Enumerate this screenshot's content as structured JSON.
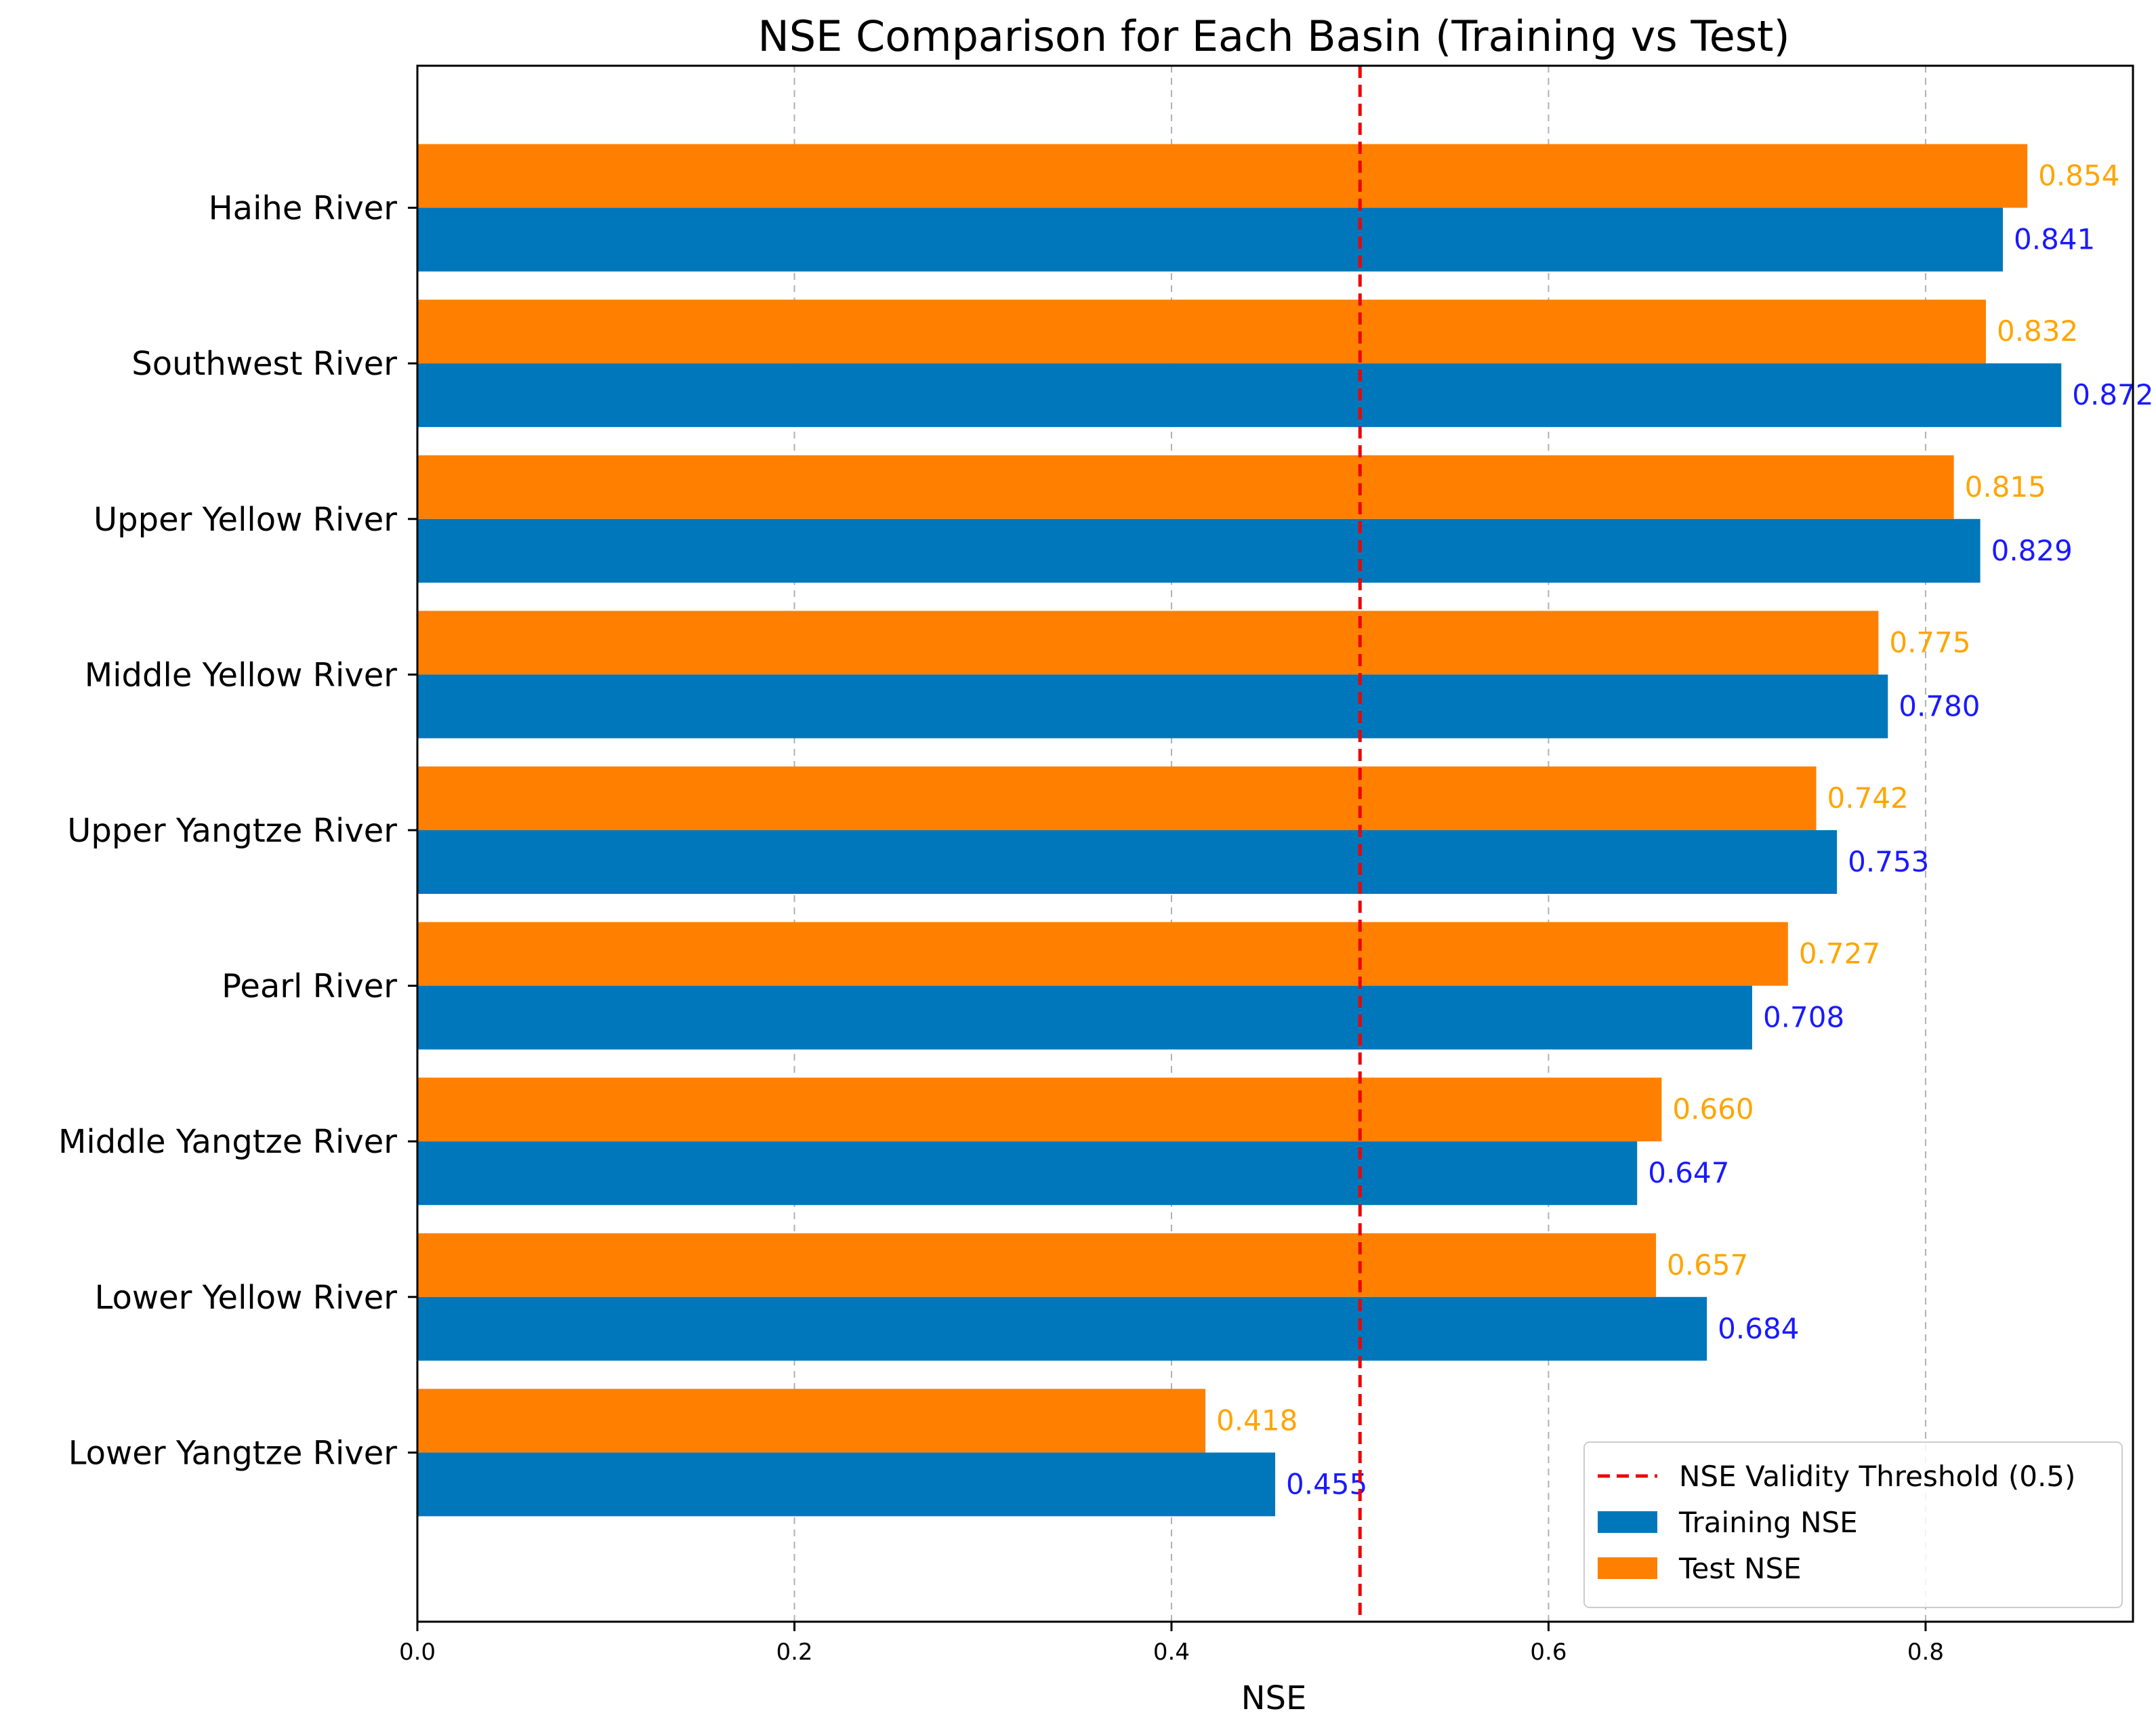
{
  "chart_data": {
    "type": "bar",
    "orientation": "horizontal",
    "title": "NSE Comparison for Each Basin (Training vs Test)",
    "xlabel": "NSE",
    "ylabel": "",
    "xlim": [
      0,
      0.91
    ],
    "xticks": [
      0.0,
      0.2,
      0.4,
      0.6,
      0.8
    ],
    "xtick_labels": [
      "0.0",
      "0.2",
      "0.4",
      "0.6",
      "0.8"
    ],
    "grid": "vertical dashed",
    "categories": [
      "Haihe River",
      "Southwest River",
      "Upper Yellow River",
      "Middle Yellow River",
      "Upper Yangtze River",
      "Pearl River",
      "Middle Yangtze River",
      "Lower Yellow River",
      "Lower Yangtze River"
    ],
    "series": [
      {
        "name": "Training NSE",
        "color": "#0077bb",
        "label_color": "#1a1aff",
        "values": [
          0.841,
          0.872,
          0.829,
          0.78,
          0.753,
          0.708,
          0.647,
          0.684,
          0.455
        ],
        "value_labels": [
          "0.841",
          "0.872",
          "0.829",
          "0.780",
          "0.753",
          "0.708",
          "0.647",
          "0.684",
          "0.455"
        ]
      },
      {
        "name": "Test NSE",
        "color": "#ff8000",
        "label_color": "#ffa500",
        "values": [
          0.854,
          0.832,
          0.815,
          0.775,
          0.742,
          0.727,
          0.66,
          0.657,
          0.418
        ],
        "value_labels": [
          "0.854",
          "0.832",
          "0.815",
          "0.775",
          "0.742",
          "0.727",
          "0.660",
          "0.657",
          "0.418"
        ]
      }
    ],
    "threshold": {
      "value": 0.5,
      "label": "NSE Validity Threshold (0.5)",
      "color": "#ee0000"
    },
    "legend_position": "lower-right"
  }
}
